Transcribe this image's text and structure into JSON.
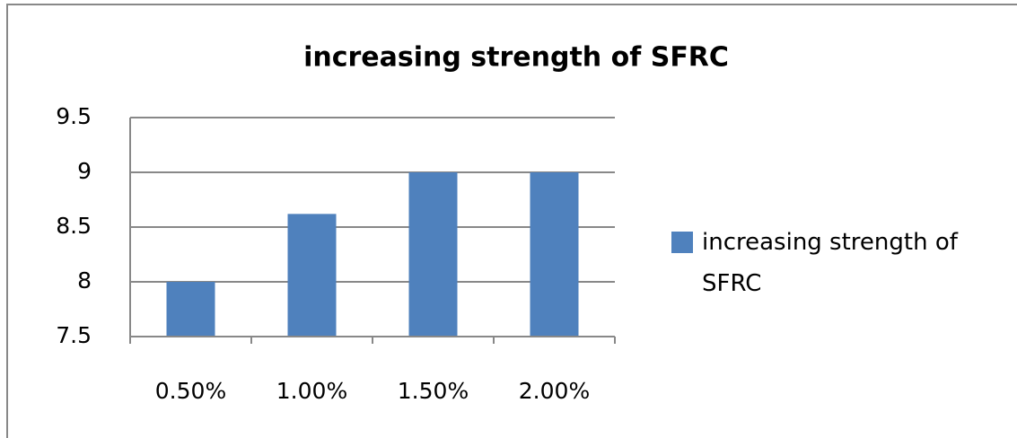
{
  "chart_data": {
    "type": "bar",
    "title": "increasing strength of SFRC",
    "categories": [
      "0.50%",
      "1.00%",
      "1.50%",
      "2.00%"
    ],
    "series": [
      {
        "name": "increasing strength of SFRC",
        "color": "#4f81bd",
        "values": [
          8,
          8.62,
          9,
          9
        ]
      }
    ],
    "ylim": [
      7.5,
      9.5
    ],
    "yticks": [
      7.5,
      8,
      8.5,
      9,
      9.5
    ],
    "grid": true,
    "legend": "right"
  }
}
